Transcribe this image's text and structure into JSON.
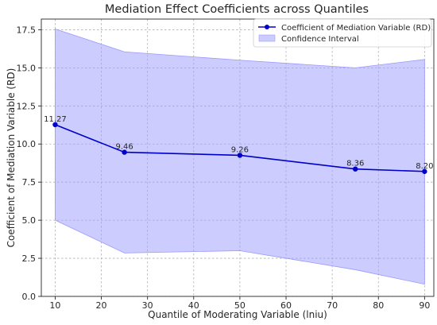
{
  "chart_data": {
    "type": "line",
    "title": "Mediation Effect Coefficients across Quantiles",
    "xlabel": "Quantile of Moderating Variable (lniu)",
    "ylabel": "Coefficient of Mediation Variable (RD)",
    "x": [
      10,
      25,
      50,
      75,
      90
    ],
    "xlim": [
      7,
      92
    ],
    "ylim": [
      0,
      18.2
    ],
    "xticks": [
      10,
      20,
      30,
      40,
      50,
      60,
      70,
      80,
      90
    ],
    "yticks": [
      0.0,
      2.5,
      5.0,
      7.5,
      10.0,
      12.5,
      15.0,
      17.5
    ],
    "grid": true,
    "legend_position": "top-right",
    "series": [
      {
        "name": "Coefficient of Mediation Variable (RD)",
        "type": "line",
        "color": "#0000cc",
        "marker": "circle",
        "values": [
          11.27,
          9.46,
          9.26,
          8.36,
          8.2
        ],
        "data_labels": [
          "11.27",
          "9.46",
          "9.26",
          "8.36",
          "8.20"
        ]
      },
      {
        "name": "Confidence Interval",
        "type": "area-band",
        "color": "#9999ff",
        "lower": [
          5.0,
          2.85,
          3.0,
          1.75,
          0.8
        ],
        "upper": [
          17.55,
          16.05,
          15.5,
          15.0,
          15.55
        ]
      }
    ]
  }
}
